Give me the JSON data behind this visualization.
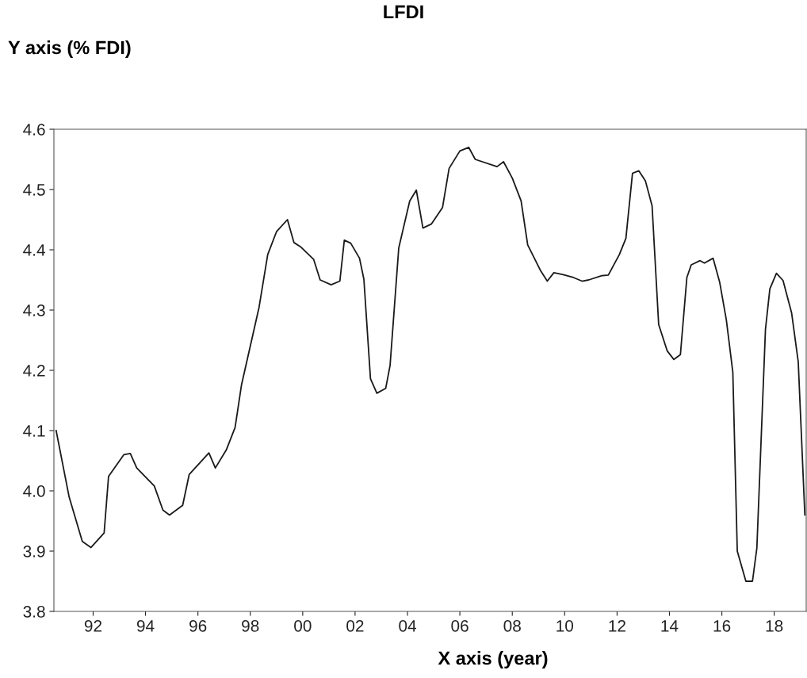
{
  "chart_data": {
    "type": "line",
    "title": "LFDI",
    "xlabel": "X axis (year)",
    "ylabel": "Y axis (% FDI)",
    "x": [
      "1991-02",
      "1991-08",
      "1992-02",
      "1992-06",
      "1992-12",
      "1993-02",
      "1993-09",
      "1993-12",
      "1994-03",
      "1994-11",
      "1995-03",
      "1995-06",
      "1995-12",
      "1996-03",
      "1996-12",
      "1997-03",
      "1997-08",
      "1997-12",
      "1998-03",
      "1998-11",
      "1999-03",
      "1999-07",
      "1999-12",
      "2000-03",
      "2000-06",
      "2000-12",
      "2001-03",
      "2001-08",
      "2001-12",
      "2002-02",
      "2002-05",
      "2002-09",
      "2002-11",
      "2003-02",
      "2003-05",
      "2003-09",
      "2003-11",
      "2004-03",
      "2004-08",
      "2004-11",
      "2005-02",
      "2005-06",
      "2005-11",
      "2006-02",
      "2006-07",
      "2006-11",
      "2007-02",
      "2007-12",
      "2008-03",
      "2008-07",
      "2008-11",
      "2009-02",
      "2009-08",
      "2009-11",
      "2010-02",
      "2010-06",
      "2010-11",
      "2011-03",
      "2011-06",
      "2011-12",
      "2012-03",
      "2012-08",
      "2012-11",
      "2013-02",
      "2013-05",
      "2013-08",
      "2013-11",
      "2014-02",
      "2014-06",
      "2014-09",
      "2014-12",
      "2015-03",
      "2015-05",
      "2015-09",
      "2015-11",
      "2016-03",
      "2016-06",
      "2016-09",
      "2016-12",
      "2017-02",
      "2017-06",
      "2017-09",
      "2017-11",
      "2018-03",
      "2018-05",
      "2018-08",
      "2018-11",
      "2019-03",
      "2019-06",
      "2019-09"
    ],
    "series": [
      {
        "color": "#1a1a1a",
        "values": [
          4.1,
          3.99,
          3.916,
          3.906,
          3.93,
          4.024,
          4.06,
          4.062,
          4.038,
          4.008,
          3.968,
          3.96,
          3.976,
          4.027,
          4.063,
          4.038,
          4.068,
          4.105,
          4.176,
          4.305,
          4.392,
          4.43,
          4.45,
          4.412,
          4.405,
          4.384,
          4.35,
          4.342,
          4.348,
          4.416,
          4.411,
          4.386,
          4.351,
          4.186,
          4.162,
          4.17,
          4.208,
          4.403,
          4.481,
          4.499,
          4.436,
          4.443,
          4.47,
          4.535,
          4.564,
          4.57,
          4.55,
          4.538,
          4.546,
          4.519,
          4.481,
          4.408,
          4.365,
          4.348,
          4.362,
          4.359,
          4.354,
          4.348,
          4.35,
          4.357,
          4.358,
          4.392,
          4.419,
          4.527,
          4.531,
          4.514,
          4.473,
          4.276,
          4.232,
          4.218,
          4.226,
          4.354,
          4.375,
          4.382,
          4.378,
          4.386,
          4.346,
          4.284,
          4.197,
          3.9,
          3.85,
          3.85,
          3.905,
          4.268,
          4.335,
          4.361,
          4.349,
          4.295,
          4.214,
          3.96
        ]
      }
    ],
    "xlim": [
      "1991-01-01",
      "2019-09-20"
    ],
    "ylim": [
      3.8,
      4.6
    ],
    "xticks": [
      {
        "value": "1992-07",
        "label": "92"
      },
      {
        "value": "1994-07",
        "label": "94"
      },
      {
        "value": "1996-07",
        "label": "96"
      },
      {
        "value": "1998-07",
        "label": "98"
      },
      {
        "value": "2000-07",
        "label": "00"
      },
      {
        "value": "2002-07",
        "label": "02"
      },
      {
        "value": "2004-07",
        "label": "04"
      },
      {
        "value": "2006-07",
        "label": "06"
      },
      {
        "value": "2008-07",
        "label": "08"
      },
      {
        "value": "2010-07",
        "label": "10"
      },
      {
        "value": "2012-07",
        "label": "12"
      },
      {
        "value": "2014-07",
        "label": "14"
      },
      {
        "value": "2016-07",
        "label": "16"
      },
      {
        "value": "2018-07",
        "label": "18"
      }
    ],
    "yticks": [
      3.8,
      3.9,
      {
        "value": 4.0,
        "label": "4.0"
      },
      4.1,
      4.2,
      4.3,
      4.4,
      4.5,
      4.6
    ],
    "grid": false,
    "marker": "none",
    "line_style": "solid"
  }
}
